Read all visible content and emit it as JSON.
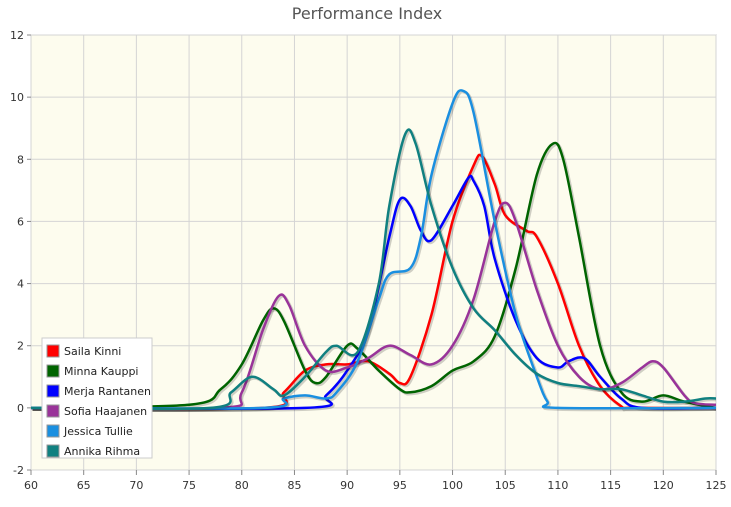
{
  "chart_data": {
    "type": "line",
    "title": "Performance Index",
    "xlabel": "",
    "ylabel": "",
    "xlim": [
      60,
      125
    ],
    "ylim": [
      -2,
      12
    ],
    "x_ticks": [
      "60",
      "65",
      "70",
      "75",
      "80",
      "85",
      "90",
      "95",
      "100",
      "105",
      "110",
      "115",
      "120",
      "125"
    ],
    "y_ticks": [
      "-2",
      "0",
      "2",
      "4",
      "6",
      "8",
      "10",
      "12"
    ],
    "grid": true,
    "legend_position": "bottom-left",
    "plot_background": "#fdfcee",
    "series": [
      {
        "name": "Saila Kinni",
        "color": "#ff0000",
        "points": [
          [
            60,
            0
          ],
          [
            82,
            0
          ],
          [
            84,
            0.5
          ],
          [
            86,
            1.2
          ],
          [
            88,
            1.4
          ],
          [
            90,
            1.4
          ],
          [
            92,
            1.5
          ],
          [
            94,
            1.1
          ],
          [
            95,
            0.8
          ],
          [
            96,
            1.0
          ],
          [
            98,
            3.0
          ],
          [
            100,
            6.0
          ],
          [
            102,
            7.8
          ],
          [
            102.8,
            8.1
          ],
          [
            104,
            7.2
          ],
          [
            105,
            6.2
          ],
          [
            107,
            5.7
          ],
          [
            108,
            5.5
          ],
          [
            110,
            4.0
          ],
          [
            112,
            2.0
          ],
          [
            114,
            0.7
          ],
          [
            116,
            0.05
          ],
          [
            117,
            0
          ],
          [
            125,
            0
          ]
        ]
      },
      {
        "name": "Minna Kauppi",
        "color": "#006400",
        "points": [
          [
            60,
            0
          ],
          [
            75,
            0.1
          ],
          [
            78,
            0.6
          ],
          [
            80,
            1.4
          ],
          [
            82,
            2.8
          ],
          [
            83,
            3.2
          ],
          [
            84,
            2.8
          ],
          [
            86,
            1.2
          ],
          [
            87,
            0.8
          ],
          [
            88,
            1.0
          ],
          [
            90,
            2.0
          ],
          [
            91,
            1.9
          ],
          [
            93,
            1.2
          ],
          [
            95,
            0.6
          ],
          [
            96,
            0.5
          ],
          [
            98,
            0.7
          ],
          [
            100,
            1.2
          ],
          [
            102,
            1.5
          ],
          [
            104,
            2.3
          ],
          [
            106,
            4.5
          ],
          [
            108,
            7.5
          ],
          [
            109.5,
            8.5
          ],
          [
            110.5,
            8.0
          ],
          [
            112,
            5.5
          ],
          [
            114,
            2.0
          ],
          [
            116,
            0.5
          ],
          [
            118,
            0.2
          ],
          [
            120,
            0.4
          ],
          [
            122,
            0.2
          ],
          [
            125,
            0
          ]
        ]
      },
      {
        "name": "Merja Rantanen",
        "color": "#0000ff",
        "points": [
          [
            60,
            0
          ],
          [
            86,
            0
          ],
          [
            88,
            0.4
          ],
          [
            90,
            1.2
          ],
          [
            92,
            2.5
          ],
          [
            94,
            5.5
          ],
          [
            95,
            6.7
          ],
          [
            96,
            6.5
          ],
          [
            97,
            5.7
          ],
          [
            98,
            5.4
          ],
          [
            100,
            6.5
          ],
          [
            101.5,
            7.4
          ],
          [
            102,
            7.3
          ],
          [
            103,
            6.5
          ],
          [
            104,
            4.8
          ],
          [
            106,
            2.8
          ],
          [
            108,
            1.6
          ],
          [
            110,
            1.3
          ],
          [
            111,
            1.5
          ],
          [
            112.5,
            1.6
          ],
          [
            114,
            1.0
          ],
          [
            116,
            0.3
          ],
          [
            118,
            0
          ],
          [
            125,
            0
          ]
        ]
      },
      {
        "name": "Sofia Haajanen",
        "color": "#993399",
        "points": [
          [
            60,
            0
          ],
          [
            78,
            0
          ],
          [
            80,
            0.5
          ],
          [
            82,
            2.5
          ],
          [
            83.5,
            3.6
          ],
          [
            84.5,
            3.3
          ],
          [
            86,
            2.0
          ],
          [
            88,
            1.2
          ],
          [
            90,
            1.3
          ],
          [
            92,
            1.6
          ],
          [
            94,
            2.0
          ],
          [
            96,
            1.7
          ],
          [
            98,
            1.4
          ],
          [
            100,
            2.0
          ],
          [
            102,
            3.5
          ],
          [
            104,
            6.0
          ],
          [
            105,
            6.6
          ],
          [
            106,
            6.0
          ],
          [
            108,
            3.8
          ],
          [
            110,
            2.0
          ],
          [
            112,
            1.0
          ],
          [
            114,
            0.6
          ],
          [
            116,
            0.8
          ],
          [
            118,
            1.3
          ],
          [
            119,
            1.5
          ],
          [
            120,
            1.3
          ],
          [
            122,
            0.4
          ],
          [
            123,
            0.15
          ],
          [
            125,
            0.1
          ]
        ]
      },
      {
        "name": "Jessica Tullie",
        "color": "#1a8fe0",
        "points": [
          [
            60,
            0
          ],
          [
            82,
            0
          ],
          [
            84,
            0.3
          ],
          [
            86,
            0.4
          ],
          [
            88,
            0.3
          ],
          [
            89,
            0.5
          ],
          [
            91,
            1.5
          ],
          [
            93,
            3.5
          ],
          [
            94,
            4.3
          ],
          [
            96,
            4.5
          ],
          [
            97,
            5.5
          ],
          [
            98,
            7.5
          ],
          [
            100,
            9.8
          ],
          [
            101,
            10.2
          ],
          [
            102,
            9.5
          ],
          [
            104,
            6.0
          ],
          [
            106,
            3.0
          ],
          [
            108,
            1.0
          ],
          [
            109,
            0.2
          ],
          [
            110,
            0
          ],
          [
            125,
            0
          ]
        ]
      },
      {
        "name": "Annika Rihma",
        "color": "#108080",
        "points": [
          [
            60,
            0
          ],
          [
            77,
            0
          ],
          [
            79,
            0.5
          ],
          [
            81,
            1.0
          ],
          [
            83,
            0.6
          ],
          [
            84,
            0.4
          ],
          [
            86,
            1.0
          ],
          [
            88,
            1.8
          ],
          [
            89,
            2.0
          ],
          [
            91,
            1.8
          ],
          [
            93,
            4.0
          ],
          [
            94,
            6.5
          ],
          [
            95.5,
            8.8
          ],
          [
            96.5,
            8.5
          ],
          [
            98,
            6.5
          ],
          [
            100,
            4.5
          ],
          [
            102,
            3.2
          ],
          [
            104,
            2.5
          ],
          [
            106,
            1.7
          ],
          [
            108,
            1.1
          ],
          [
            110,
            0.8
          ],
          [
            112,
            0.7
          ],
          [
            114,
            0.6
          ],
          [
            116,
            0.6
          ],
          [
            118,
            0.4
          ],
          [
            120,
            0.2
          ],
          [
            122,
            0.2
          ],
          [
            124,
            0.3
          ],
          [
            125,
            0.3
          ]
        ]
      }
    ]
  }
}
